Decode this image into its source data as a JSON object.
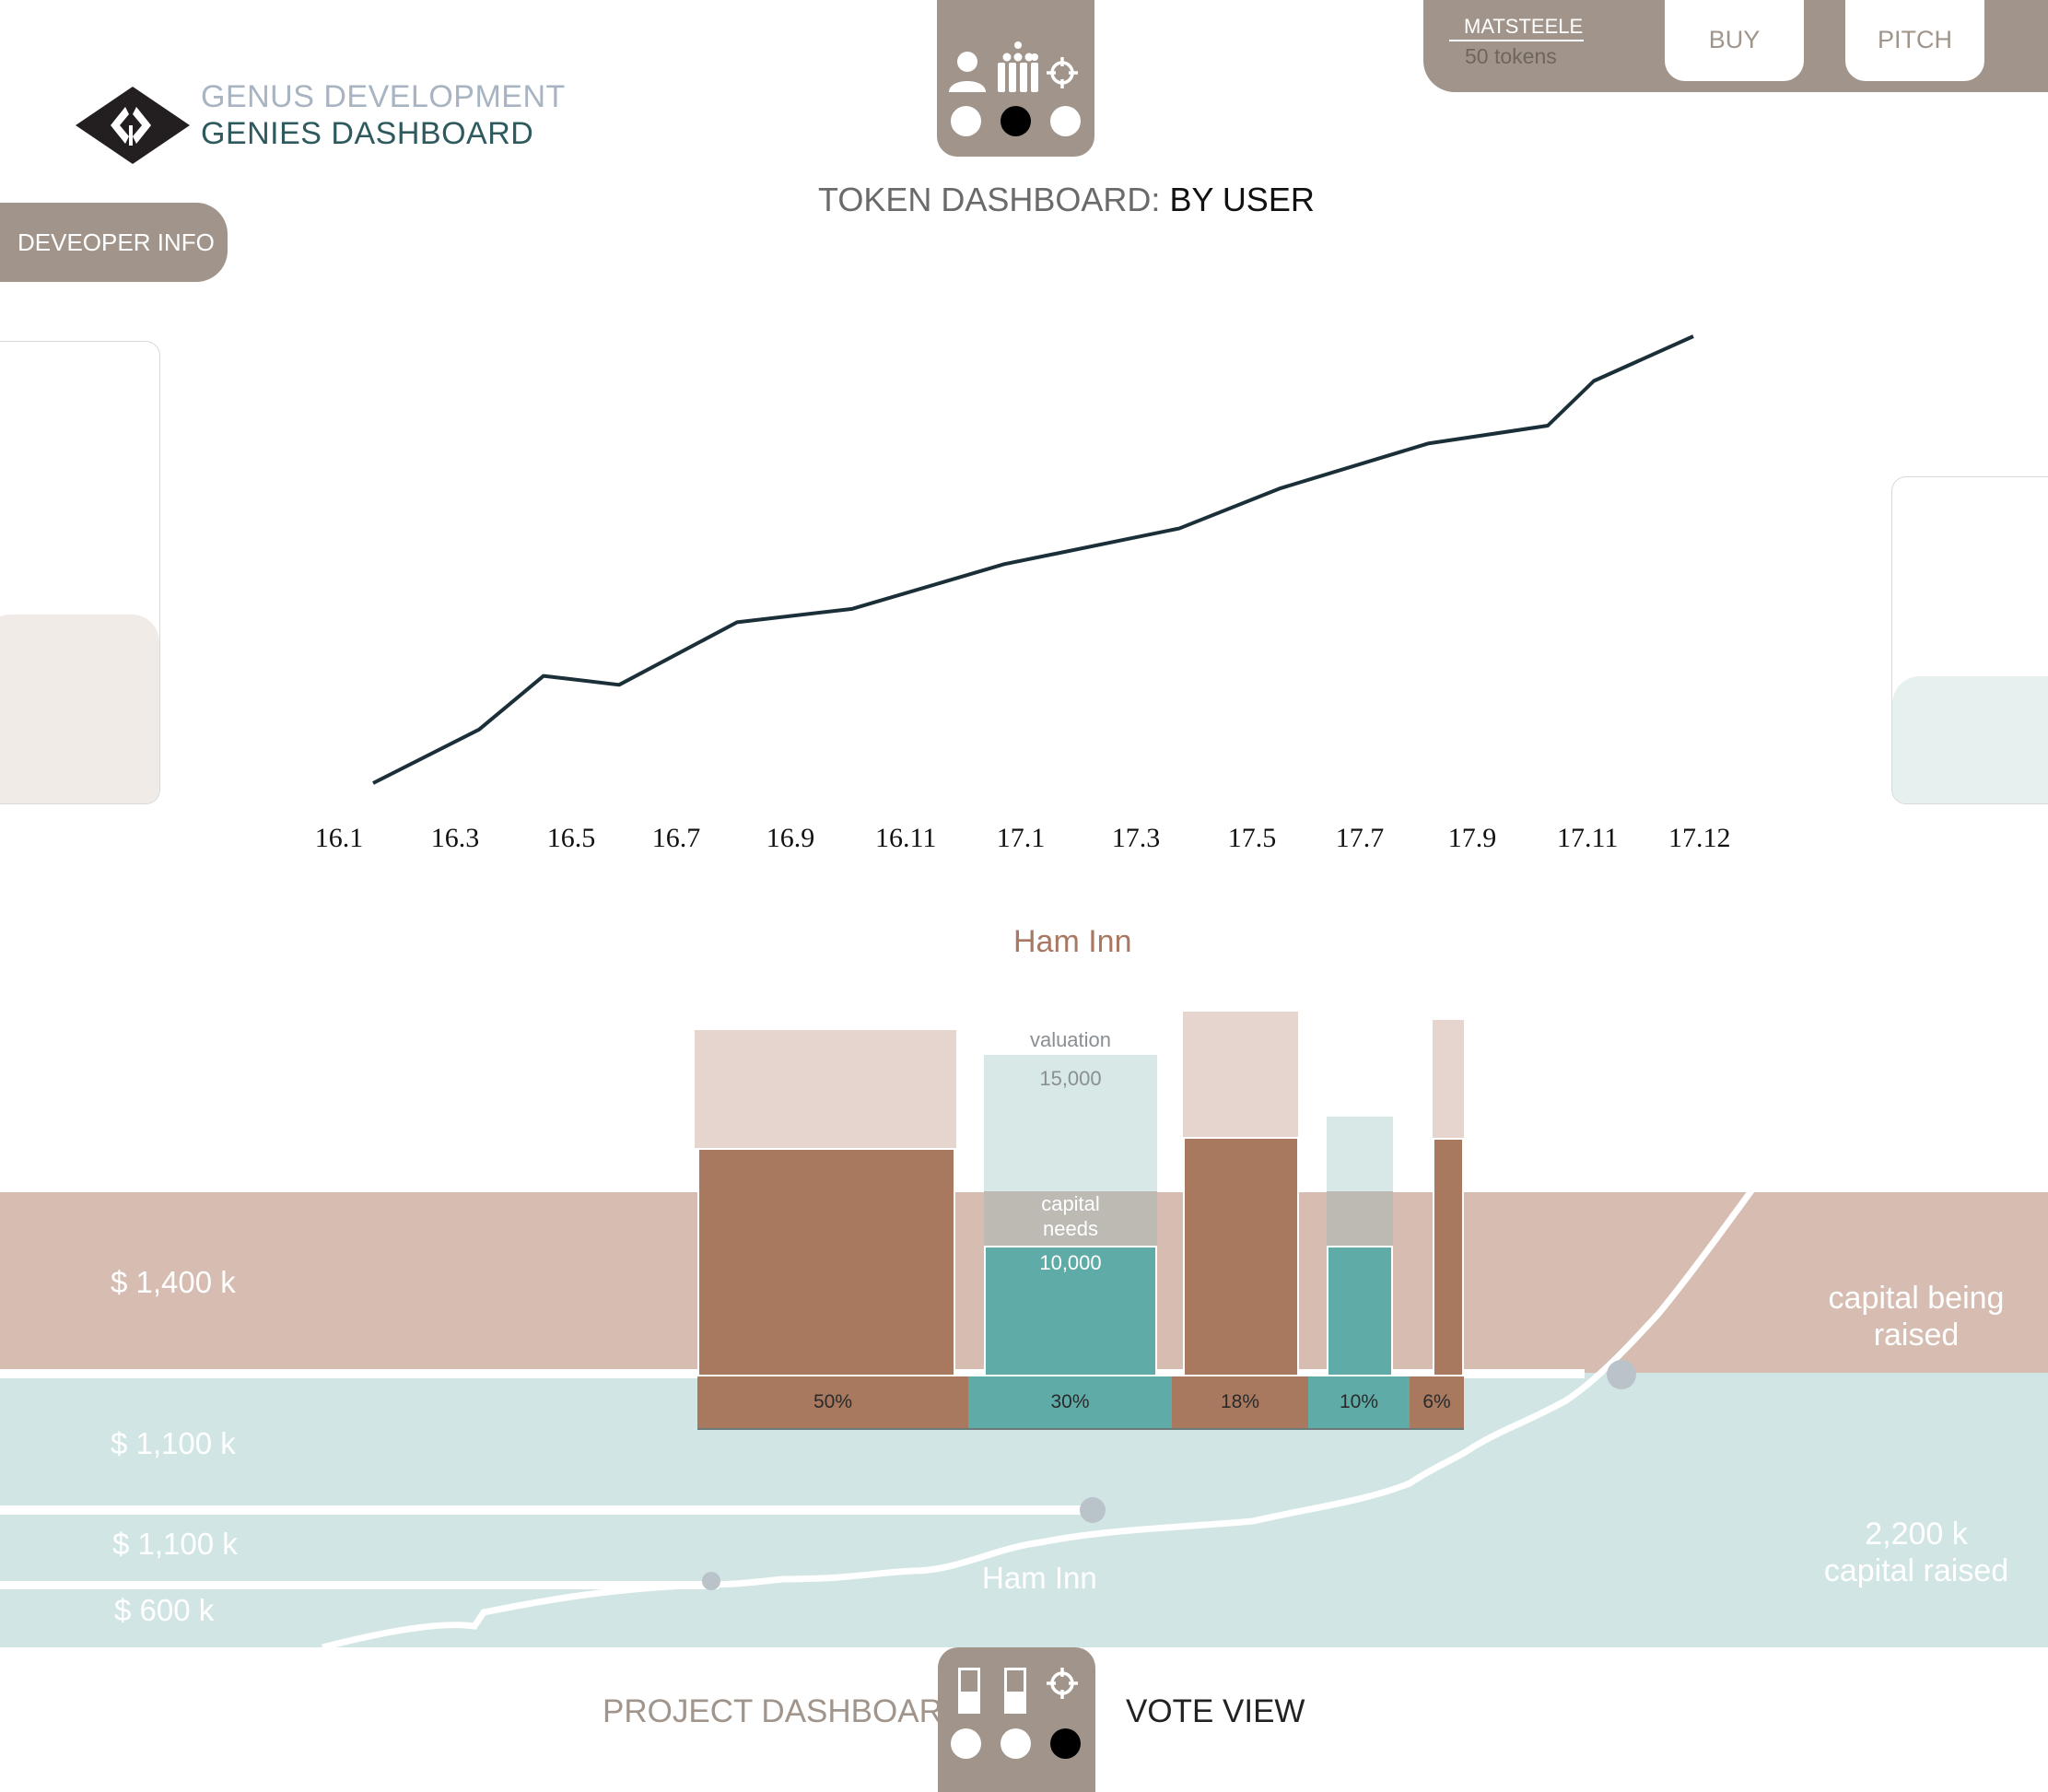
{
  "brand": {
    "line1": "GENUS DEVELOPMENT",
    "line2": "GENIES DASHBOARD",
    "logo_icon": "gd-diamond-logo"
  },
  "top_nav": {
    "icons": [
      "person-icon",
      "group-icon",
      "target-icon"
    ],
    "active_index": 1
  },
  "user": {
    "name": "MATSTEELE",
    "tokens": "50 tokens"
  },
  "actions": {
    "buy": "BUY",
    "pitch": "PITCH"
  },
  "sidebar": {
    "developer_info": "DEVEOPER INFO"
  },
  "dashboard_title": {
    "prefix": "TOKEN DASHBOARD:",
    "suffix": "BY USER"
  },
  "chart_data": {
    "type": "line",
    "x": [
      "16.1",
      "16.3",
      "16.5",
      "16.7",
      "16.9",
      "16.11",
      "17.1",
      "17.3",
      "17.5",
      "17.7",
      "17.9",
      "17.11",
      "17.12"
    ],
    "series": [
      {
        "values": [
          0.0,
          0.12,
          0.24,
          0.22,
          0.36,
          0.39,
          0.49,
          0.57,
          0.66,
          0.76,
          0.8,
          0.9,
          1.0
        ],
        "color": "#1b2f38"
      }
    ],
    "xlabel": "",
    "ylabel": ""
  },
  "project": {
    "title": "Ham Inn",
    "valuation_label": "valuation",
    "valuation_value": "15,000",
    "capital_needs_label": "capital\nneeds",
    "capital_needs_value": "10,000",
    "share_bars": [
      {
        "label": "50%",
        "color": "#a8795f"
      },
      {
        "label": "30%",
        "color": "#5faba8"
      },
      {
        "label": "18%",
        "color": "#a8795f"
      },
      {
        "label": "10%",
        "color": "#5faba8"
      },
      {
        "label": "6%",
        "color": "#a8795f"
      }
    ]
  },
  "capital_band": {
    "label_1400": "$ 1,400 k",
    "label_1100a": "$ 1,100 k",
    "label_1100b": "$ 1,100 k",
    "label_600": "$ 600 k",
    "inner_label": "Ham Inn",
    "right_top": "capital being\nraised",
    "right_bottom_1": "2,200 k",
    "right_bottom_2": "capital raised",
    "colors": {
      "brown": "#d6bcb1",
      "teal": "#d1e6e4"
    }
  },
  "bottom_nav": {
    "left_label": "PROJECT DASHBOARD",
    "right_label": "VOTE VIEW",
    "icons": [
      "bar-toggle-icon",
      "bar-toggle-icon",
      "target-icon"
    ],
    "active_index": 2
  }
}
